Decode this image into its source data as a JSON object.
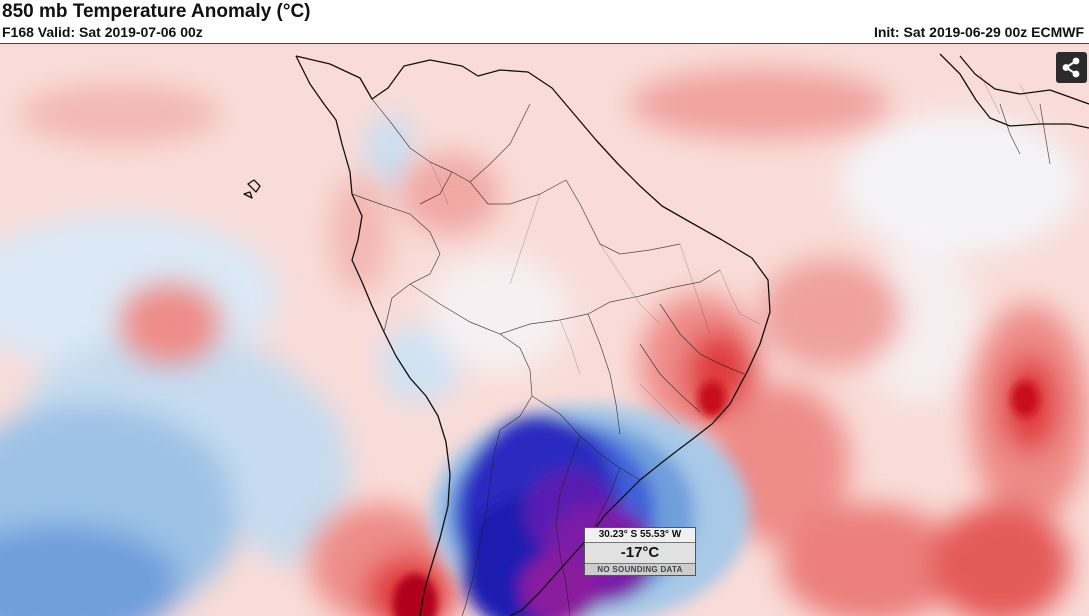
{
  "header": {
    "title": "850 mb Temperature Anomaly (°C)",
    "valid": "F168 Valid: Sat 2019-07-06 00z",
    "init": "Init: Sat 2019-06-29 00z ECMWF"
  },
  "readout": {
    "coords": "30.23° S 55.53° W",
    "value": "-17°C",
    "note": "NO SOUNDING DATA"
  },
  "icons": {
    "share": "share-icon"
  },
  "colors": {
    "warm_light": "#f7c9c5",
    "warm_mid": "#ee8c88",
    "warm_strong": "#e03a3c",
    "warm_extreme": "#b0001a",
    "cool_light": "#d4e6f4",
    "cool_mid": "#a8c9e8",
    "cool_strong": "#3f5fd8",
    "cold_deep": "#1e1ab0",
    "cold_extreme": "#7a1aa8",
    "land_outline": "#111111"
  }
}
